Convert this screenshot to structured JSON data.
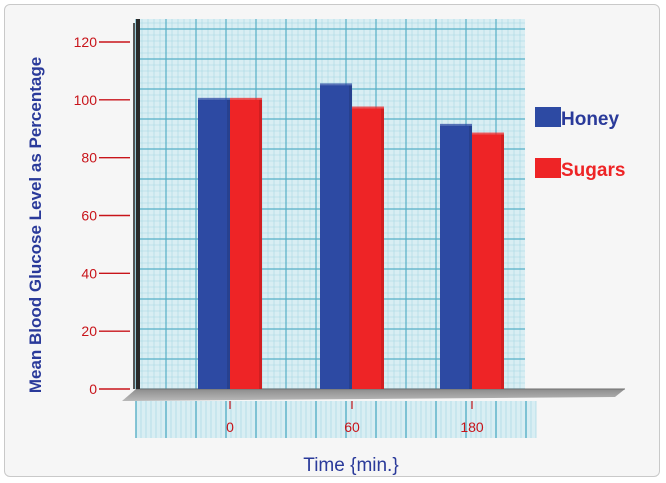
{
  "chart_data": {
    "type": "bar",
    "title": "",
    "xlabel": "Time {min.}",
    "ylabel": "Mean Blood Glucose Level as Percentage",
    "categories": [
      "0",
      "60",
      "180"
    ],
    "series": [
      {
        "name": "Honey",
        "values": [
          100,
          105,
          91
        ],
        "color": "#2d4aa3"
      },
      {
        "name": "Sugars",
        "values": [
          100,
          97,
          88
        ],
        "color": "#ee2426"
      }
    ],
    "yticks": [
      "0",
      "20",
      "40",
      "60",
      "80",
      "100",
      "120"
    ],
    "ylim": [
      0,
      120
    ],
    "grid": true,
    "legend_position": "right",
    "colors": {
      "axis_label": "#2a3a9a",
      "tick_label": "#c8141a",
      "grid_major": "#56aec6",
      "grid_minor": "#a6d7e3",
      "panel": "#d9eef3"
    }
  }
}
